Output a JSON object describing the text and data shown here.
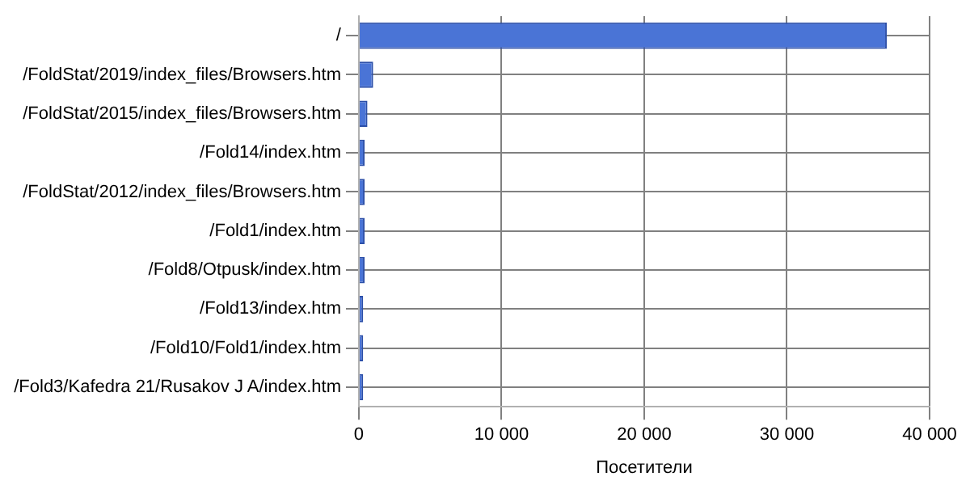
{
  "chart_data": {
    "type": "bar",
    "orientation": "horizontal",
    "xlabel": "Посетители",
    "categories": [
      "/",
      "/FoldStat/2019/index_files/Browsers.htm",
      "/FoldStat/2015/index_files/Browsers.htm",
      "/Fold14/index.htm",
      "/FoldStat/2012/index_files/Browsers.htm",
      "/Fold1/index.htm",
      "/Fold8/Otpusk/index.htm",
      "/Fold13/index.htm",
      "/Fold10/Fold1/index.htm",
      "/Fold3/Kafedra 21/Rusakov J A/index.htm"
    ],
    "values": [
      37000,
      1000,
      600,
      400,
      400,
      400,
      400,
      300,
      300,
      300
    ],
    "color": "#4a74d6",
    "xlim": [
      0,
      40000
    ],
    "xticks": [
      0,
      {
        "value": 10000,
        "label": "10 000"
      },
      {
        "value": 20000,
        "label": "20 000"
      },
      {
        "value": 30000,
        "label": "30 000"
      },
      {
        "value": 40000,
        "label": "40 000"
      }
    ],
    "grid": true,
    "legend": false
  }
}
